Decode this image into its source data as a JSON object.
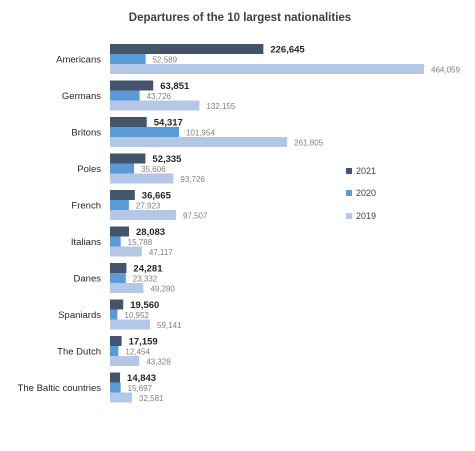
{
  "chart_data": {
    "type": "bar",
    "orientation": "horizontal",
    "title": "Departures of the 10 largest nationalities",
    "categories": [
      "Americans",
      "Germans",
      "Britons",
      "Poles",
      "French",
      "Italians",
      "Danes",
      "Spaniards",
      "The Dutch",
      "The Baltic countries"
    ],
    "series": [
      {
        "name": "2021",
        "color": "#44546a",
        "values": [
          226645,
          63851,
          54317,
          52335,
          36665,
          28083,
          24281,
          19560,
          17159,
          14843
        ]
      },
      {
        "name": "2020",
        "color": "#5b9bd5",
        "values": [
          52589,
          43726,
          101954,
          35606,
          27923,
          15788,
          23332,
          10952,
          12454,
          15697
        ]
      },
      {
        "name": "2019",
        "color": "#b4c7e7",
        "values": [
          464059,
          132155,
          261805,
          93726,
          97507,
          47117,
          49280,
          59141,
          43328,
          32581
        ]
      }
    ],
    "xlim": [
      0,
      500000
    ],
    "grid": false,
    "legend_position": "right"
  }
}
